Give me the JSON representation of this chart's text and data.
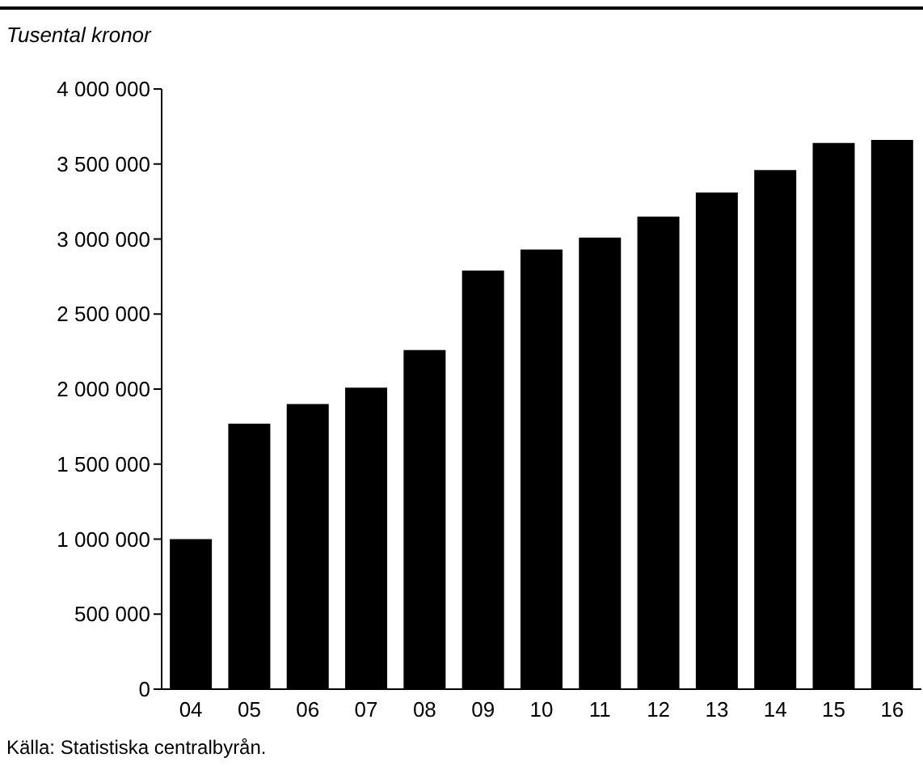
{
  "chart_data": {
    "type": "bar",
    "ylabel": "Tusental kronor",
    "annotations": [
      "Källa: Statistiska centralbyrån."
    ],
    "categories": [
      "04",
      "05",
      "06",
      "07",
      "08",
      "09",
      "10",
      "11",
      "12",
      "13",
      "14",
      "15",
      "16"
    ],
    "values": [
      1000000,
      1770000,
      1900000,
      2010000,
      2260000,
      2790000,
      2930000,
      3010000,
      3150000,
      3310000,
      3460000,
      3640000,
      3660000
    ],
    "color": "#000000",
    "ylim": [
      0,
      4000000
    ],
    "yticks": [
      {
        "value": 0,
        "label": "0"
      },
      {
        "value": 500000,
        "label": "500 000"
      },
      {
        "value": 1000000,
        "label": "1 000 000"
      },
      {
        "value": 1500000,
        "label": "1 500 000"
      },
      {
        "value": 2000000,
        "label": "2 000 000"
      },
      {
        "value": 2500000,
        "label": "2 500 000"
      },
      {
        "value": 3000000,
        "label": "3 000 000"
      },
      {
        "value": 3500000,
        "label": "3 500 000"
      },
      {
        "value": 4000000,
        "label": "4 000 000"
      }
    ],
    "grid": false,
    "legend": false
  }
}
